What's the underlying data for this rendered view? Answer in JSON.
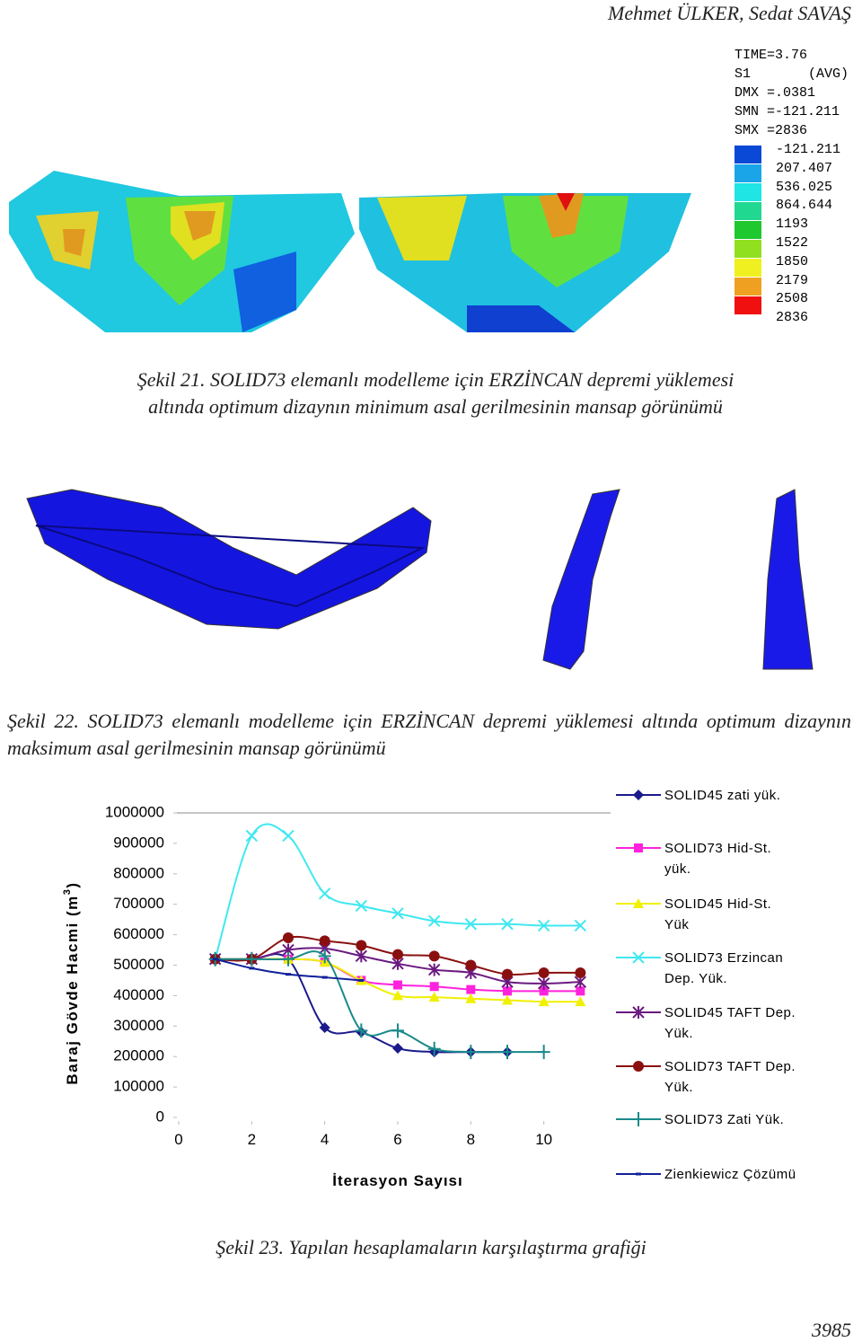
{
  "header": {
    "authors": "Mehmet ÜLKER, Sedat SAVAŞ"
  },
  "figure21": {
    "legend": [
      "TIME=3.76",
      "S1",
      "(AVG)",
      "DMX =.0381",
      "SMN =-121.211",
      "SMX =2836"
    ],
    "scale": [
      "-121.211",
      "207.407",
      "536.025",
      "864.644",
      "1193",
      "1522",
      "1850",
      "2179",
      "2508",
      "2836"
    ],
    "caption": "Şekil 21. SOLID73 elemanlı modelleme için ERZİNCAN depremi yüklemesi altında optimum dizaynın minimum asal gerilmesinin mansap görünümü"
  },
  "figure22": {
    "caption": "Şekil 22. SOLID73 elemanlı modelleme için ERZİNCAN depremi yüklemesi altında optimum dizaynın maksimum asal gerilmesinin mansap görünümü"
  },
  "chart_data": {
    "type": "line",
    "x_label": "İterasyon Sayısı",
    "y_label": [
      "Baraj Gövde Hacmi (m",
      "3",
      ")"
    ],
    "xlim": [
      0,
      12
    ],
    "xticks": [
      0,
      2,
      4,
      6,
      8,
      10
    ],
    "ylim": [
      0,
      1000000
    ],
    "yticks": [
      0,
      100000,
      200000,
      300000,
      400000,
      500000,
      600000,
      700000,
      800000,
      900000,
      1000000
    ],
    "series": [
      {
        "name": "SOLID45 zati yük.",
        "color": "#1a1a8c",
        "marker": "diamond",
        "x": [
          1,
          2,
          3,
          4,
          5,
          6,
          7,
          8,
          9
        ],
        "values": [
          520000,
          520000,
          520000,
          295000,
          280000,
          227000,
          215000,
          215000,
          215000
        ]
      },
      {
        "name": "SOLID73 Hid-St. yük.",
        "color": "#ff22dd",
        "marker": "square",
        "x": [
          1,
          2,
          3,
          4,
          5,
          6,
          7,
          8,
          9,
          10,
          11
        ],
        "values": [
          520000,
          520000,
          520000,
          510000,
          450000,
          435000,
          430000,
          420000,
          415000,
          415000,
          415000
        ]
      },
      {
        "name": "SOLID45 Hid-St. Yük",
        "color": "#f0f000",
        "marker": "triangle",
        "x": [
          1,
          2,
          3,
          4,
          5,
          6,
          7,
          8,
          9,
          10,
          11
        ],
        "values": [
          520000,
          520000,
          520000,
          510000,
          450000,
          400000,
          395000,
          390000,
          385000,
          380000,
          380000
        ]
      },
      {
        "name": "SOLID73 Erzincan Dep. Yük.",
        "color": "#40e8f0",
        "marker": "x",
        "x": [
          1,
          2,
          3,
          4,
          5,
          6,
          7,
          8,
          9,
          10,
          11
        ],
        "values": [
          520000,
          925000,
          925000,
          735000,
          695000,
          670000,
          645000,
          635000,
          635000,
          630000,
          630000
        ]
      },
      {
        "name": "SOLID45 TAFT Dep. Yük.",
        "color": "#6a1a80",
        "marker": "star",
        "x": [
          1,
          2,
          3,
          4,
          5,
          6,
          7,
          8,
          9,
          10,
          11
        ],
        "values": [
          520000,
          520000,
          550000,
          555000,
          530000,
          505000,
          485000,
          475000,
          445000,
          440000,
          445000
        ]
      },
      {
        "name": "SOLID73 TAFT Dep. Yük.",
        "color": "#8a1010",
        "marker": "circle",
        "x": [
          1,
          2,
          3,
          4,
          5,
          6,
          7,
          8,
          9,
          10,
          11
        ],
        "values": [
          520000,
          520000,
          590000,
          580000,
          565000,
          535000,
          530000,
          500000,
          470000,
          475000,
          475000
        ]
      },
      {
        "name": "SOLID73 Zati Yük.",
        "color": "#1a8a8a",
        "marker": "plus",
        "x": [
          1,
          2,
          3,
          4,
          5,
          6,
          7,
          8,
          9,
          10
        ],
        "values": [
          520000,
          520000,
          520000,
          530000,
          285000,
          285000,
          225000,
          215000,
          215000,
          215000
        ]
      },
      {
        "name": "Zienkiewicz Çözümü",
        "color": "#10209a",
        "marker": "dash",
        "x": [
          1,
          2,
          3,
          4,
          5
        ],
        "values": [
          520000,
          490000,
          470000,
          460000,
          450000
        ]
      }
    ]
  },
  "figure23": {
    "caption": "Şekil 23. Yapılan hesaplamaların karşılaştırma grafiği"
  },
  "footer": {
    "page": "3985"
  }
}
